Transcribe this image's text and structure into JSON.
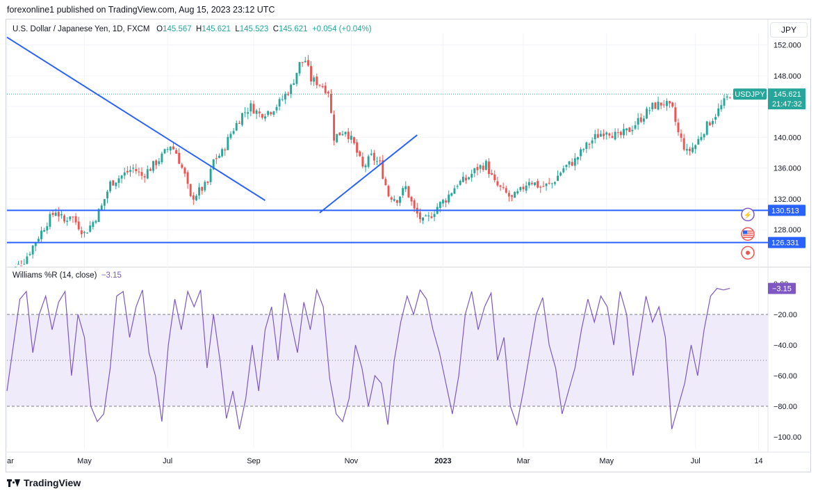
{
  "header": {
    "text": "forexonline1 published on TradingView.com, Aug 15, 2023 23:12 UTC"
  },
  "footer": {
    "brand": "TradingView"
  },
  "currency_button": "JPY",
  "legend": {
    "symbol": "U.S. Dollar / Japanese Yen, 1D, FXCM",
    "o_label": "O",
    "o": "145.567",
    "h_label": "H",
    "h": "145.621",
    "l_label": "L",
    "l": "145.523",
    "c_label": "C",
    "c": "145.621",
    "change": "+0.054 (+0.04%)"
  },
  "indicator_legend": {
    "name": "Williams %R (14, close)",
    "value": "−3.15"
  },
  "price_tags": {
    "symbol_tag": "USDJPY",
    "last_price": "145.621",
    "countdown": "21:47:32",
    "level1": "130.513",
    "level2": "126.331",
    "wr_value": "−3.15"
  },
  "colors": {
    "up": "#26a69a",
    "down": "#ef5350",
    "line": "#2962ff",
    "wr": "#7e57c2",
    "wr_band": "#f0ebfa",
    "tag_green": "#26a69a",
    "tag_blue": "#2962ff",
    "tag_purple": "#7e57c2"
  },
  "icons": [
    "lightning-icon",
    "us-flag-icon",
    "record-icon",
    "tradingview-logo-icon"
  ],
  "chart_data": [
    {
      "type": "candlestick",
      "title": "U.S. Dollar / Japanese Yen, 1D, FXCM",
      "y_ticks": [
        "152.000",
        "148.000",
        "144.000",
        "140.000",
        "136.000",
        "132.000",
        "128.000"
      ],
      "y_tick_values": [
        152,
        148,
        144,
        140,
        136,
        132,
        128
      ],
      "ylim": [
        123.5,
        153.5
      ],
      "x_ticks": [
        "ar",
        "May",
        "Jul",
        "Sep",
        "Nov",
        "2023",
        "Mar",
        "May",
        "Jul",
        "14"
      ],
      "close_path": [
        [
          0,
          122
        ],
        [
          6,
          124
        ],
        [
          10,
          126.5
        ],
        [
          14,
          129
        ],
        [
          17,
          130.5
        ],
        [
          20,
          129
        ],
        [
          22,
          130
        ],
        [
          25,
          128.5
        ],
        [
          27,
          127.5
        ],
        [
          30,
          129
        ],
        [
          33,
          131
        ],
        [
          36,
          134
        ],
        [
          40,
          135
        ],
        [
          44,
          136
        ],
        [
          47,
          135
        ],
        [
          50,
          136
        ],
        [
          54,
          137.5
        ],
        [
          57,
          139
        ],
        [
          59,
          138
        ],
        [
          62,
          135
        ],
        [
          64,
          132
        ],
        [
          67,
          133
        ],
        [
          70,
          134
        ],
        [
          72,
          137
        ],
        [
          75,
          138
        ],
        [
          78,
          140.5
        ],
        [
          82,
          143
        ],
        [
          85,
          144
        ],
        [
          88,
          143
        ],
        [
          92,
          143.5
        ],
        [
          95,
          144.5
        ],
        [
          99,
          146.5
        ],
        [
          102,
          149.5
        ],
        [
          104,
          150
        ],
        [
          106,
          147.5
        ],
        [
          109,
          147
        ],
        [
          112,
          146
        ],
        [
          114,
          140
        ],
        [
          118,
          141
        ],
        [
          121,
          139
        ],
        [
          124,
          136
        ],
        [
          127,
          137.5
        ],
        [
          130,
          136.5
        ],
        [
          133,
          132.5
        ],
        [
          136,
          132
        ],
        [
          139,
          133.5
        ],
        [
          142,
          130.5
        ],
        [
          145,
          129
        ],
        [
          147,
          129.5
        ],
        [
          150,
          131
        ],
        [
          153,
          132
        ],
        [
          157,
          134
        ],
        [
          160,
          134.5
        ],
        [
          164,
          136
        ],
        [
          167,
          136.5
        ],
        [
          170,
          134
        ],
        [
          173,
          133
        ],
        [
          176,
          132
        ],
        [
          179,
          133
        ],
        [
          182,
          134.5
        ],
        [
          186,
          133.5
        ],
        [
          190,
          134
        ],
        [
          194,
          136
        ],
        [
          198,
          137
        ],
        [
          201,
          138.5
        ],
        [
          205,
          140
        ],
        [
          209,
          141
        ],
        [
          213,
          140
        ],
        [
          217,
          141
        ],
        [
          221,
          142.5
        ],
        [
          225,
          144
        ],
        [
          229,
          144.5
        ],
        [
          232,
          143.5
        ],
        [
          234,
          140.5
        ],
        [
          237,
          138
        ],
        [
          240,
          139
        ],
        [
          243,
          141
        ],
        [
          246,
          142.5
        ],
        [
          249,
          144
        ],
        [
          252,
          145.6
        ]
      ],
      "lines": [
        {
          "name": "resistance-trendline",
          "from": [
            0,
            153
          ],
          "to": [
            90,
            131.8
          ]
        },
        {
          "name": "support-trendline",
          "from": [
            109,
            130.2
          ],
          "to": [
            143,
            140.3
          ]
        }
      ],
      "levels": [
        {
          "label": "130.513",
          "value": 130.513
        },
        {
          "label": "126.331",
          "value": 126.331
        }
      ],
      "last": {
        "label": "USDJPY",
        "value": 145.621
      }
    },
    {
      "type": "line",
      "title": "Williams %R (14, close)",
      "y_ticks": [
        "0.00",
        "−20.00",
        "−40.00",
        "−60.00",
        "−80.00",
        "−100.00"
      ],
      "y_tick_values": [
        0,
        -20,
        -40,
        -60,
        -80,
        -100
      ],
      "ylim": [
        -100,
        0
      ],
      "band": [
        -80,
        -20
      ],
      "series": [
        {
          "values": [
            -70,
            -40,
            -10,
            -5,
            -45,
            -20,
            -8,
            -30,
            -12,
            -5,
            -60,
            -20,
            -35,
            -80,
            -90,
            -85,
            -55,
            -8,
            -5,
            -35,
            -15,
            -4,
            -45,
            -60,
            -90,
            -40,
            -10,
            -30,
            -5,
            -15,
            -4,
            -55,
            -20,
            -50,
            -88,
            -70,
            -95,
            -75,
            -40,
            -70,
            -30,
            -15,
            -50,
            -6,
            -25,
            -45,
            -12,
            -30,
            -4,
            -15,
            -62,
            -85,
            -90,
            -75,
            -40,
            -55,
            -80,
            -60,
            -65,
            -92,
            -50,
            -25,
            -8,
            -20,
            -4,
            -10,
            -30,
            -45,
            -65,
            -85,
            -60,
            -20,
            -5,
            -30,
            -15,
            -6,
            -50,
            -35,
            -80,
            -92,
            -70,
            -45,
            -20,
            -9,
            -40,
            -55,
            -85,
            -70,
            -55,
            -30,
            -10,
            -25,
            -8,
            -15,
            -40,
            -5,
            -20,
            -60,
            -35,
            -8,
            -25,
            -15,
            -35,
            -95,
            -80,
            -65,
            -40,
            -60,
            -30,
            -8,
            -3,
            -4,
            -3
          ]
        }
      ]
    }
  ]
}
